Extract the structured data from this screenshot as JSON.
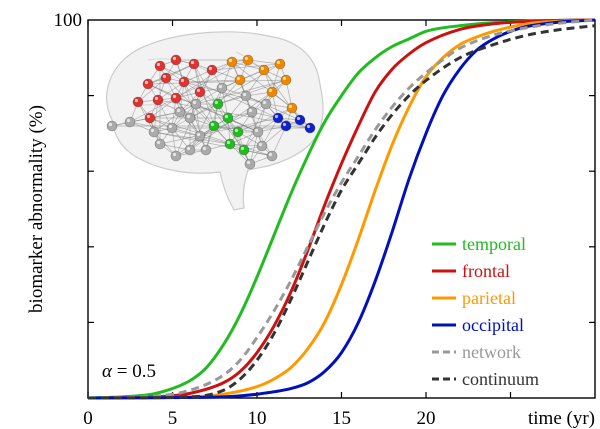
{
  "chart_data": {
    "type": "line",
    "xlabel": "time (yr)",
    "ylabel": "biomarker abnormality (%)",
    "xlim": [
      0,
      30
    ],
    "ylim": [
      0,
      100
    ],
    "x_ticks": [
      {
        "value": 0,
        "label": "0"
      },
      {
        "value": 5,
        "label": "5"
      },
      {
        "value": 10,
        "label": "10"
      },
      {
        "value": 15,
        "label": "15"
      },
      {
        "value": 20,
        "label": "20"
      }
    ],
    "y_ticks": [
      {
        "value": 100,
        "label": "100"
      }
    ],
    "annotation": {
      "symbol": "α",
      "text": " = 0.5"
    },
    "legend_position": "lower-right",
    "grid": false,
    "series": [
      {
        "name": "temporal",
        "color": "#22bb22",
        "style": "solid",
        "x": [
          0,
          2,
          4,
          6,
          7,
          8,
          9,
          10,
          11,
          12,
          13,
          14,
          15,
          16,
          17,
          18,
          19,
          20,
          22,
          24,
          26,
          28,
          30
        ],
        "y": [
          0,
          0.3,
          1.2,
          4.5,
          8,
          14,
          22,
          32,
          43,
          54,
          64,
          73,
          80,
          86,
          90,
          93,
          95,
          97,
          98.5,
          99.3,
          99.7,
          99.9,
          100
        ]
      },
      {
        "name": "frontal",
        "color": "#cc1111",
        "style": "solid",
        "x": [
          0,
          4,
          6,
          8,
          9,
          10,
          11,
          12,
          13,
          14,
          15,
          16,
          17,
          18,
          19,
          20,
          22,
          24,
          26,
          28,
          30
        ],
        "y": [
          0,
          0.3,
          1.2,
          4,
          7,
          12,
          19,
          28,
          39,
          51,
          62,
          72,
          81,
          87,
          91,
          94,
          97.5,
          99,
          99.6,
          99.9,
          100
        ]
      },
      {
        "name": "parietal",
        "color": "#ff9900",
        "style": "solid",
        "x": [
          0,
          6,
          8,
          10,
          11,
          12,
          13,
          14,
          15,
          16,
          17,
          18,
          19,
          20,
          21,
          22,
          23,
          24,
          26,
          28,
          30
        ],
        "y": [
          0,
          0.3,
          1,
          3,
          5,
          8,
          13,
          20,
          30,
          42,
          55,
          67,
          77,
          85,
          90,
          93.5,
          95.5,
          97,
          99,
          99.7,
          100
        ]
      },
      {
        "name": "occipital",
        "color": "#0011bb",
        "style": "solid",
        "x": [
          0,
          8,
          10,
          12,
          13,
          14,
          15,
          16,
          17,
          18,
          19,
          20,
          21,
          22,
          23,
          24,
          25,
          26,
          28,
          30
        ],
        "y": [
          0,
          0.3,
          1,
          2.5,
          4,
          7,
          12,
          20,
          31,
          44,
          58,
          70,
          80,
          87,
          92,
          95,
          97,
          98.3,
          99.5,
          100
        ]
      },
      {
        "name": "network",
        "color": "#999999",
        "style": "dashed",
        "x": [
          0,
          4,
          6,
          8,
          9,
          10,
          11,
          12,
          13,
          14,
          15,
          16,
          17,
          18,
          19,
          20,
          21,
          22,
          24,
          26,
          28,
          30
        ],
        "y": [
          0,
          0.5,
          2,
          6,
          10,
          16,
          23,
          31,
          40,
          49,
          57,
          64,
          71,
          77,
          82,
          86,
          89.5,
          92.5,
          96,
          98,
          99.2,
          100
        ]
      },
      {
        "name": "continuum",
        "color": "#333333",
        "style": "dashed",
        "x": [
          0,
          6,
          8,
          9,
          10,
          11,
          12,
          13,
          14,
          15,
          16,
          17,
          18,
          19,
          20,
          22,
          24,
          26,
          28,
          30
        ],
        "y": [
          0,
          0.3,
          2,
          5,
          10,
          17,
          26,
          36,
          46,
          55,
          62,
          69,
          75,
          80,
          84,
          90,
          93.5,
          96,
          97.5,
          98.5
        ]
      }
    ]
  },
  "inset": {
    "icon": "brain-network-icon"
  }
}
